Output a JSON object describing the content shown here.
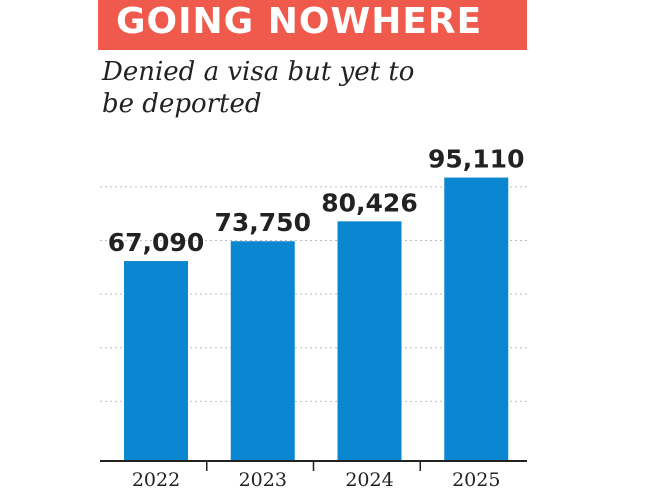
{
  "header": {
    "title": "GOING NOWHERE",
    "subtitle": "Denied a visa but yet to be deported"
  },
  "colors": {
    "banner": "#ef5a4c",
    "bar": "#0b86d0",
    "grid": "#bdbdbd",
    "axis": "#222222"
  },
  "chart_data": {
    "type": "bar",
    "title": "GOING NOWHERE",
    "subtitle": "Denied a visa but yet to be deported",
    "categories": [
      "2022",
      "2023",
      "2024",
      "2025"
    ],
    "values": [
      67090,
      73750,
      80426,
      95110
    ],
    "value_labels": [
      "67,090",
      "73,750",
      "80,426",
      "95,110"
    ],
    "xlabel": "",
    "ylabel": "",
    "ylim": [
      0,
      100000
    ],
    "grid": true,
    "legend": "none"
  }
}
